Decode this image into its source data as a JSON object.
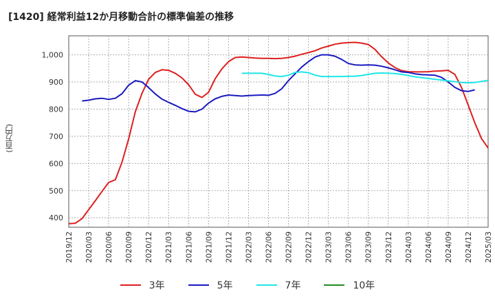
{
  "chart_data": {
    "type": "line",
    "title": "[1420]  経常利益12か月移動合計の標準偏差の推移",
    "ylabel": "(百万円)",
    "xlabel": "",
    "ylim": [
      365,
      1070
    ],
    "yticks": [
      400,
      500,
      600,
      700,
      800,
      900,
      1000
    ],
    "ytick_labels": [
      "400",
      "500",
      "600",
      "700",
      "800",
      "900",
      "1,000"
    ],
    "x_start": "2019-12",
    "x_end": "2025-03",
    "x_tick_labels": [
      "2019/12",
      "2020/03",
      "2020/06",
      "2020/09",
      "2020/12",
      "2021/03",
      "2021/06",
      "2021/09",
      "2021/12",
      "2022/03",
      "2022/06",
      "2022/09",
      "2022/12",
      "2023/03",
      "2023/06",
      "2023/09",
      "2023/12",
      "2024/03",
      "2024/06",
      "2024/09",
      "2024/12",
      "2025/03"
    ],
    "grid": true,
    "legend_position": "bottom",
    "series": [
      {
        "name": "3年",
        "color": "#dd1e1e",
        "start": "2019-12",
        "values": [
          378,
          380,
          397,
          430,
          463,
          497,
          530,
          540,
          605,
          690,
          790,
          858,
          910,
          935,
          945,
          943,
          932,
          915,
          890,
          855,
          843,
          862,
          912,
          948,
          975,
          990,
          992,
          990,
          988,
          987,
          987,
          986,
          987,
          990,
          995,
          1002,
          1008,
          1015,
          1025,
          1032,
          1039,
          1043,
          1045,
          1046,
          1043,
          1038,
          1020,
          993,
          970,
          953,
          942,
          938,
          937,
          937,
          938,
          940,
          941,
          943,
          928,
          880,
          815,
          750,
          692,
          657
        ]
      },
      {
        "name": "5年",
        "color": "#1818c0",
        "start": "2020-02",
        "values": [
          830,
          833,
          838,
          840,
          836,
          840,
          857,
          888,
          905,
          900,
          879,
          856,
          837,
          825,
          814,
          802,
          792,
          790,
          800,
          822,
          838,
          847,
          852,
          850,
          848,
          850,
          851,
          852,
          851,
          858,
          875,
          905,
          930,
          955,
          975,
          992,
          1000,
          1000,
          995,
          983,
          968,
          963,
          962,
          963,
          962,
          958,
          952,
          945,
          937,
          935,
          930,
          927,
          926,
          925,
          917,
          900,
          880,
          868,
          865,
          871
        ]
      },
      {
        "name": "7年",
        "color": "#1ee6e6",
        "start": "2022-02",
        "values": [
          932,
          932,
          932,
          932,
          928,
          922,
          920,
          925,
          935,
          937,
          934,
          925,
          920,
          920,
          920,
          920,
          921,
          921,
          924,
          928,
          932,
          933,
          932,
          931,
          928,
          924,
          919,
          916,
          913,
          910,
          907,
          904,
          901,
          898,
          897,
          898,
          902,
          906
        ]
      },
      {
        "name": "10年",
        "color": "#228b22",
        "start": "2024-12",
        "values": []
      }
    ]
  }
}
